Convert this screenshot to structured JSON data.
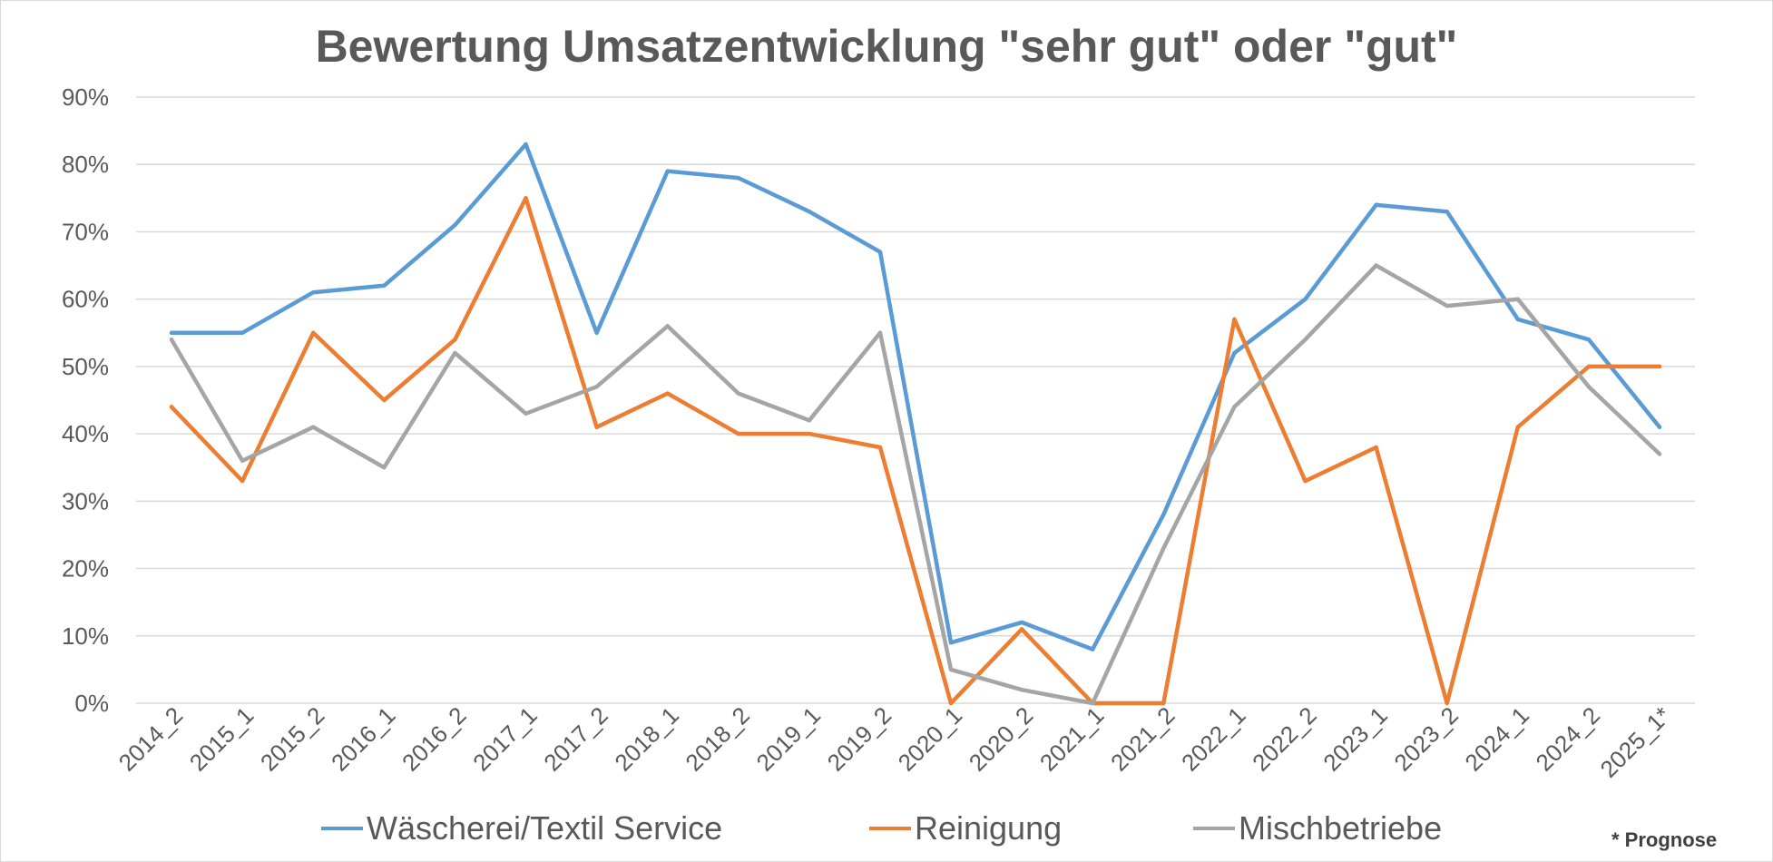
{
  "chart_data": {
    "type": "line",
    "title": "Bewertung Umsatzentwicklung \"sehr gut\" oder \"gut\"",
    "xlabel": "",
    "ylabel": "",
    "categories": [
      "2014_2",
      "2015_1",
      "2015_2",
      "2016_1",
      "2016_2",
      "2017_1",
      "2017_2",
      "2018_1",
      "2018_2",
      "2019_1",
      "2019_2",
      "2020_1",
      "2020_2",
      "2021_1",
      "2021_2",
      "2022_1",
      "2022_2",
      "2023_1",
      "2023_2",
      "2024_1",
      "2024_2",
      "2025_1*"
    ],
    "ylim": [
      0,
      90
    ],
    "yticks": [
      "0%",
      "10%",
      "20%",
      "30%",
      "40%",
      "50%",
      "60%",
      "70%",
      "80%",
      "90%"
    ],
    "grid": true,
    "legend_position": "bottom",
    "series": [
      {
        "name": "Wäscherei/Textil Service",
        "color": "#5B9BD5",
        "values": [
          55,
          55,
          61,
          62,
          71,
          83,
          55,
          79,
          78,
          73,
          67,
          9,
          12,
          8,
          28,
          52,
          60,
          74,
          73,
          57,
          54,
          41
        ]
      },
      {
        "name": "Reinigung",
        "color": "#ED7D31",
        "values": [
          44,
          33,
          55,
          45,
          54,
          75,
          41,
          46,
          40,
          40,
          38,
          0,
          11,
          0,
          0,
          57,
          33,
          38,
          0,
          41,
          50,
          50
        ]
      },
      {
        "name": "Mischbetriebe",
        "color": "#A5A5A5",
        "values": [
          54,
          36,
          41,
          35,
          52,
          43,
          47,
          56,
          46,
          42,
          55,
          5,
          2,
          0,
          23,
          44,
          54,
          65,
          59,
          60,
          47,
          37
        ]
      }
    ],
    "footnote": "* Prognose"
  }
}
